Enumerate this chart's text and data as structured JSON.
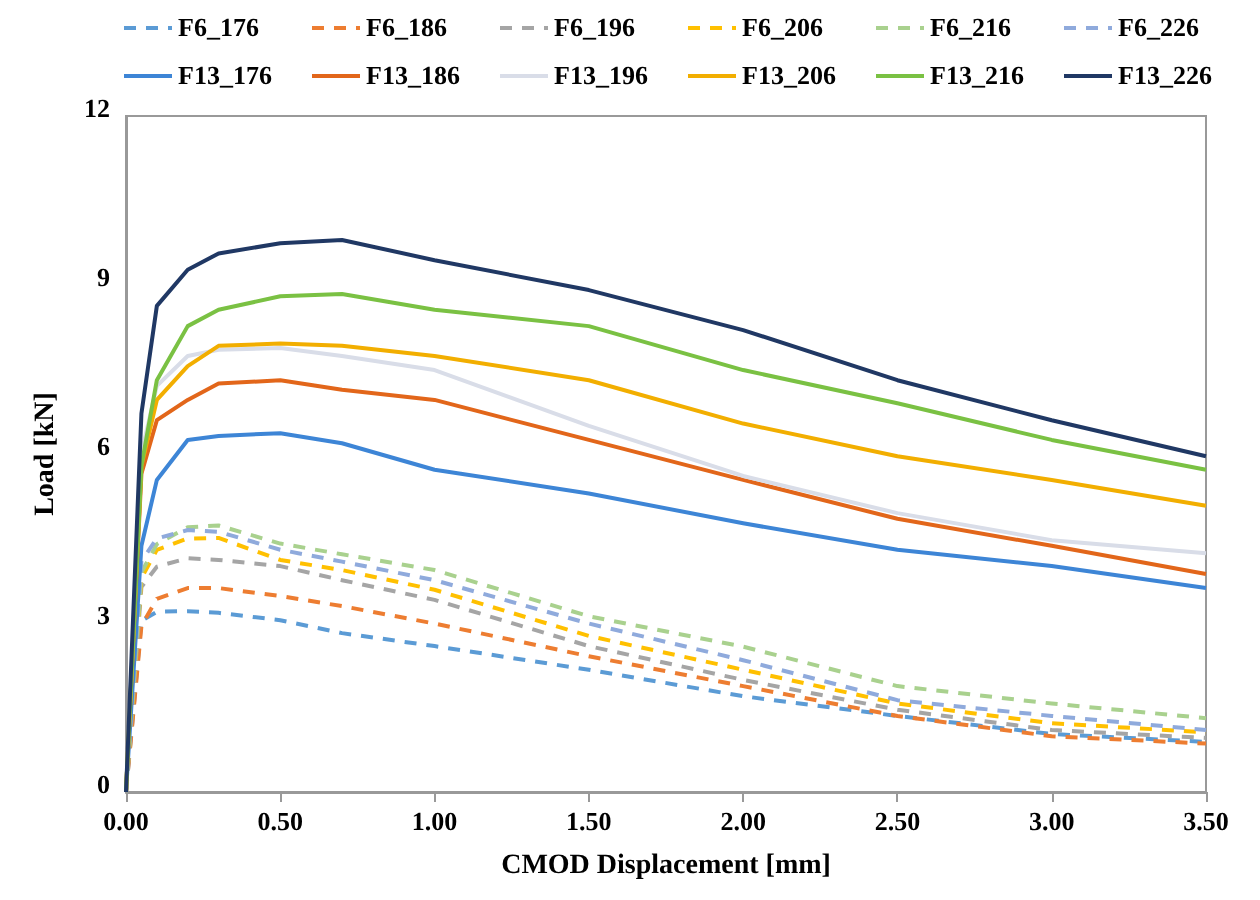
{
  "chart_data": {
    "type": "line",
    "xlabel": "CMOD Displacement [mm]",
    "ylabel": "Load [kN]",
    "xlim": [
      0,
      3.5
    ],
    "ylim": [
      0,
      12
    ],
    "xticks": [
      {
        "value": 0,
        "label": "0.00"
      },
      {
        "value": 0.5,
        "label": "0.50"
      },
      {
        "value": 1,
        "label": "1.00"
      },
      {
        "value": 1.5,
        "label": "1.50"
      },
      {
        "value": 2,
        "label": "2.00"
      },
      {
        "value": 2.5,
        "label": "2.50"
      },
      {
        "value": 3,
        "label": "3.00"
      },
      {
        "value": 3.5,
        "label": "3.50"
      }
    ],
    "yticks": [
      0,
      3,
      6,
      9,
      12
    ],
    "grid": false,
    "legend": "top",
    "marker": "none",
    "x": [
      0,
      0.05,
      0.1,
      0.2,
      0.3,
      0.5,
      0.7,
      1.0,
      1.5,
      2.0,
      2.5,
      3.0,
      3.5
    ],
    "series": [
      {
        "name": "F6_176",
        "color": "#5b9bd5",
        "line_style": "dashed",
        "values": [
          0,
          3.04,
          3.2,
          3.21,
          3.18,
          3.05,
          2.82,
          2.59,
          2.17,
          1.7,
          1.35,
          1.03,
          0.89
        ]
      },
      {
        "name": "F6_186",
        "color": "#ed7d31",
        "line_style": "dashed",
        "values": [
          0,
          2.95,
          3.43,
          3.62,
          3.62,
          3.48,
          3.3,
          2.99,
          2.41,
          1.88,
          1.35,
          0.99,
          0.86
        ]
      },
      {
        "name": "F6_196",
        "color": "#a5a5a5",
        "line_style": "dashed",
        "values": [
          0,
          3.64,
          4.0,
          4.15,
          4.12,
          4.01,
          3.76,
          3.41,
          2.59,
          1.99,
          1.46,
          1.1,
          0.96
        ]
      },
      {
        "name": "F6_206",
        "color": "#ffc000",
        "line_style": "dashed",
        "values": [
          0,
          3.8,
          4.3,
          4.5,
          4.51,
          4.12,
          3.94,
          3.59,
          2.77,
          2.17,
          1.57,
          1.22,
          1.06
        ]
      },
      {
        "name": "F6_216",
        "color": "#a9d18e",
        "line_style": "dashed",
        "values": [
          0,
          3.9,
          4.4,
          4.7,
          4.73,
          4.41,
          4.22,
          3.94,
          3.12,
          2.58,
          1.88,
          1.57,
          1.31
        ]
      },
      {
        "name": "F6_226",
        "color": "#8faadc",
        "line_style": "dashed",
        "values": [
          0,
          4.1,
          4.5,
          4.65,
          4.62,
          4.3,
          4.09,
          3.76,
          2.99,
          2.34,
          1.63,
          1.35,
          1.1
        ]
      },
      {
        "name": "F13_176",
        "color": "#3d85d6",
        "line_style": "solid",
        "values": [
          0,
          4.37,
          5.54,
          6.25,
          6.32,
          6.37,
          6.19,
          5.72,
          5.3,
          4.77,
          4.3,
          4.01,
          3.62
        ]
      },
      {
        "name": "F13_186",
        "color": "#e2661a",
        "line_style": "solid",
        "values": [
          0,
          5.65,
          6.6,
          6.96,
          7.25,
          7.31,
          7.14,
          6.96,
          6.25,
          5.54,
          4.85,
          4.37,
          3.87
        ]
      },
      {
        "name": "F13_196",
        "color": "#d9dde8",
        "line_style": "solid",
        "values": [
          0,
          6.01,
          7.21,
          7.74,
          7.85,
          7.88,
          7.74,
          7.49,
          6.5,
          5.61,
          4.95,
          4.47,
          4.24
        ]
      },
      {
        "name": "F13_206",
        "color": "#f2ae00",
        "line_style": "solid",
        "values": [
          0,
          5.79,
          6.96,
          7.56,
          7.92,
          7.96,
          7.92,
          7.74,
          7.31,
          6.54,
          5.96,
          5.54,
          5.08
        ]
      },
      {
        "name": "F13_216",
        "color": "#7ac143",
        "line_style": "solid",
        "values": [
          0,
          5.79,
          7.31,
          8.27,
          8.56,
          8.8,
          8.84,
          8.56,
          8.27,
          7.49,
          6.9,
          6.25,
          5.72
        ]
      },
      {
        "name": "F13_226",
        "color": "#203864",
        "line_style": "solid",
        "values": [
          0,
          6.72,
          8.63,
          9.27,
          9.56,
          9.74,
          9.8,
          9.44,
          8.91,
          8.2,
          7.31,
          6.6,
          5.96
        ]
      }
    ]
  }
}
